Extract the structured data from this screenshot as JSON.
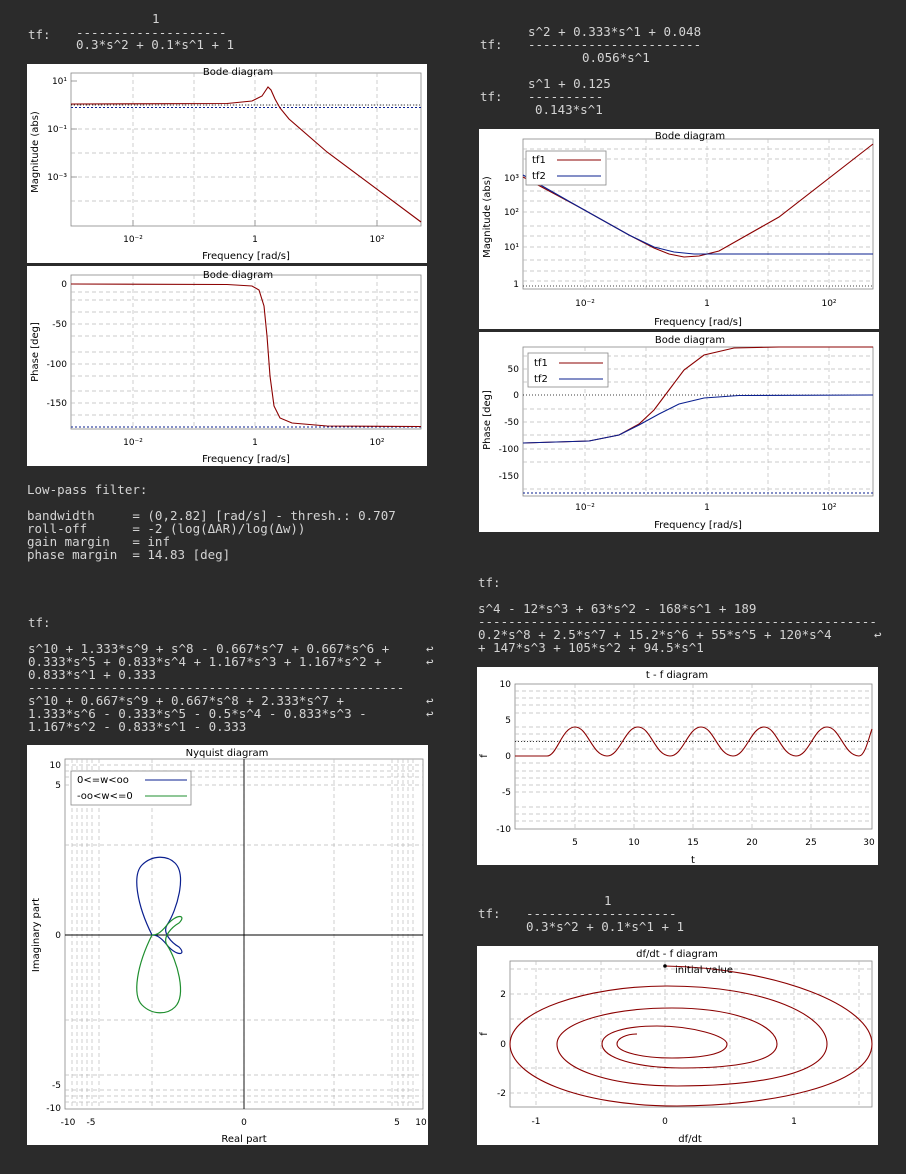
{
  "left_tf": {
    "label": "tf:",
    "num": "1",
    "line": "--------------------",
    "den": "0.3*s^2 + 0.1*s^1 + 1"
  },
  "right_tf1": {
    "label": "tf:",
    "num": "s^2 + 0.333*s^1 + 0.048",
    "line": "-----------------------",
    "den": "0.056*s^1"
  },
  "right_tf2": {
    "label": "tf:",
    "num": "s^1 + 0.125",
    "line": "----------",
    "den": "0.143*s^1"
  },
  "bode_left_mag": {
    "title": "Bode diagram",
    "xlabel": "Frequency [rad/s]",
    "ylabel": "Magnitude (abs)",
    "yticks": [
      "10¹",
      "10⁻¹",
      "10⁻³"
    ],
    "xticks": [
      "10⁻²",
      "1",
      "10²"
    ]
  },
  "bode_left_phase": {
    "title": "Bode diagram",
    "xlabel": "Frequency [rad/s]",
    "ylabel": "Phase [deg]",
    "yticks": [
      "0",
      "-50",
      "-100",
      "-150"
    ],
    "xticks": [
      "10⁻²",
      "1",
      "10²"
    ]
  },
  "bode_right_mag": {
    "title": "Bode diagram",
    "xlabel": "Frequency [rad/s]",
    "ylabel": "Magnitude (abs)",
    "yticks": [
      "10³",
      "10²",
      "10¹",
      "1"
    ],
    "xticks": [
      "10⁻²",
      "1",
      "10²"
    ],
    "legend": [
      "tf1",
      "tf2"
    ]
  },
  "bode_right_phase": {
    "title": "Bode diagram",
    "xlabel": "Frequency [rad/s]",
    "ylabel": "Phase [deg]",
    "yticks": [
      "50",
      "0",
      "-50",
      "-100",
      "-150"
    ],
    "xticks": [
      "10⁻²",
      "1",
      "10²"
    ],
    "legend": [
      "tf1",
      "tf2"
    ]
  },
  "lowpass": {
    "heading": "Low-pass filter:",
    "l1": "bandwidth     = (0,2.82] [rad/s] - thresh.: 0.707",
    "l2": "roll-off      = -2 (log(ΔAR)/log(Δw))",
    "l3": "gain margin   = inf",
    "l4": "phase margin  = 14.83 [deg]"
  },
  "nyq_tf": {
    "label": "tf:",
    "n1": "s^10 + 1.333*s^9 + s^8 - 0.667*s^7 + 0.667*s^6 +",
    "n2": "0.333*s^5 + 0.833*s^4 + 1.167*s^3 + 1.167*s^2 +",
    "n3": "0.833*s^1 + 0.333",
    "line": "--------------------------------------------------",
    "d1": "s^10 + 0.667*s^9 + 0.667*s^8 + 2.333*s^7 +",
    "d2": "1.333*s^6 - 0.333*s^5 - 0.5*s^4 - 0.833*s^3 -",
    "d3": "1.167*s^2 - 0.833*s^1 - 0.333"
  },
  "tf_right3": {
    "label": "tf:",
    "num": "s^4 - 12*s^3 + 63*s^2 - 168*s^1 + 189",
    "line": "-----------------------------------------------------",
    "d1": "0.2*s^8 + 2.5*s^7 + 15.2*s^6 + 55*s^5 + 120*s^4",
    "d2": "+ 147*s^3 + 105*s^2 + 94.5*s^1"
  },
  "tf_right4": {
    "label": "tf:",
    "num": "1",
    "line": "--------------------",
    "den": "0.3*s^2 + 0.1*s^1 + 1"
  },
  "nyquist": {
    "title": "Nyquist diagram",
    "xlabel": "Real part",
    "ylabel": "Imaginary part",
    "legend": [
      "0<=w<oo",
      "-oo<w<=0"
    ],
    "xticks": [
      "-10",
      "-5",
      "0",
      "5",
      "10"
    ],
    "yticks": [
      "10",
      "5",
      "0",
      "-5",
      "-10"
    ]
  },
  "tf_plot": {
    "title": "t - f diagram",
    "xlabel": "t",
    "ylabel": "f",
    "xticks": [
      "5",
      "10",
      "15",
      "20",
      "25",
      "30"
    ],
    "yticks": [
      "10",
      "5",
      "0",
      "-5",
      "-10"
    ]
  },
  "phase_plot": {
    "title": "df/dt - f diagram",
    "xlabel": "df/dt",
    "ylabel": "f",
    "annotation": "initial value",
    "xticks": [
      "-1",
      "0",
      "1"
    ],
    "yticks": [
      "2",
      "0",
      "-2"
    ]
  },
  "colors": {
    "red": "#8b0000",
    "blue": "#0a1f8f",
    "green": "#1f8f2f",
    "background": "#2b2b2b"
  }
}
